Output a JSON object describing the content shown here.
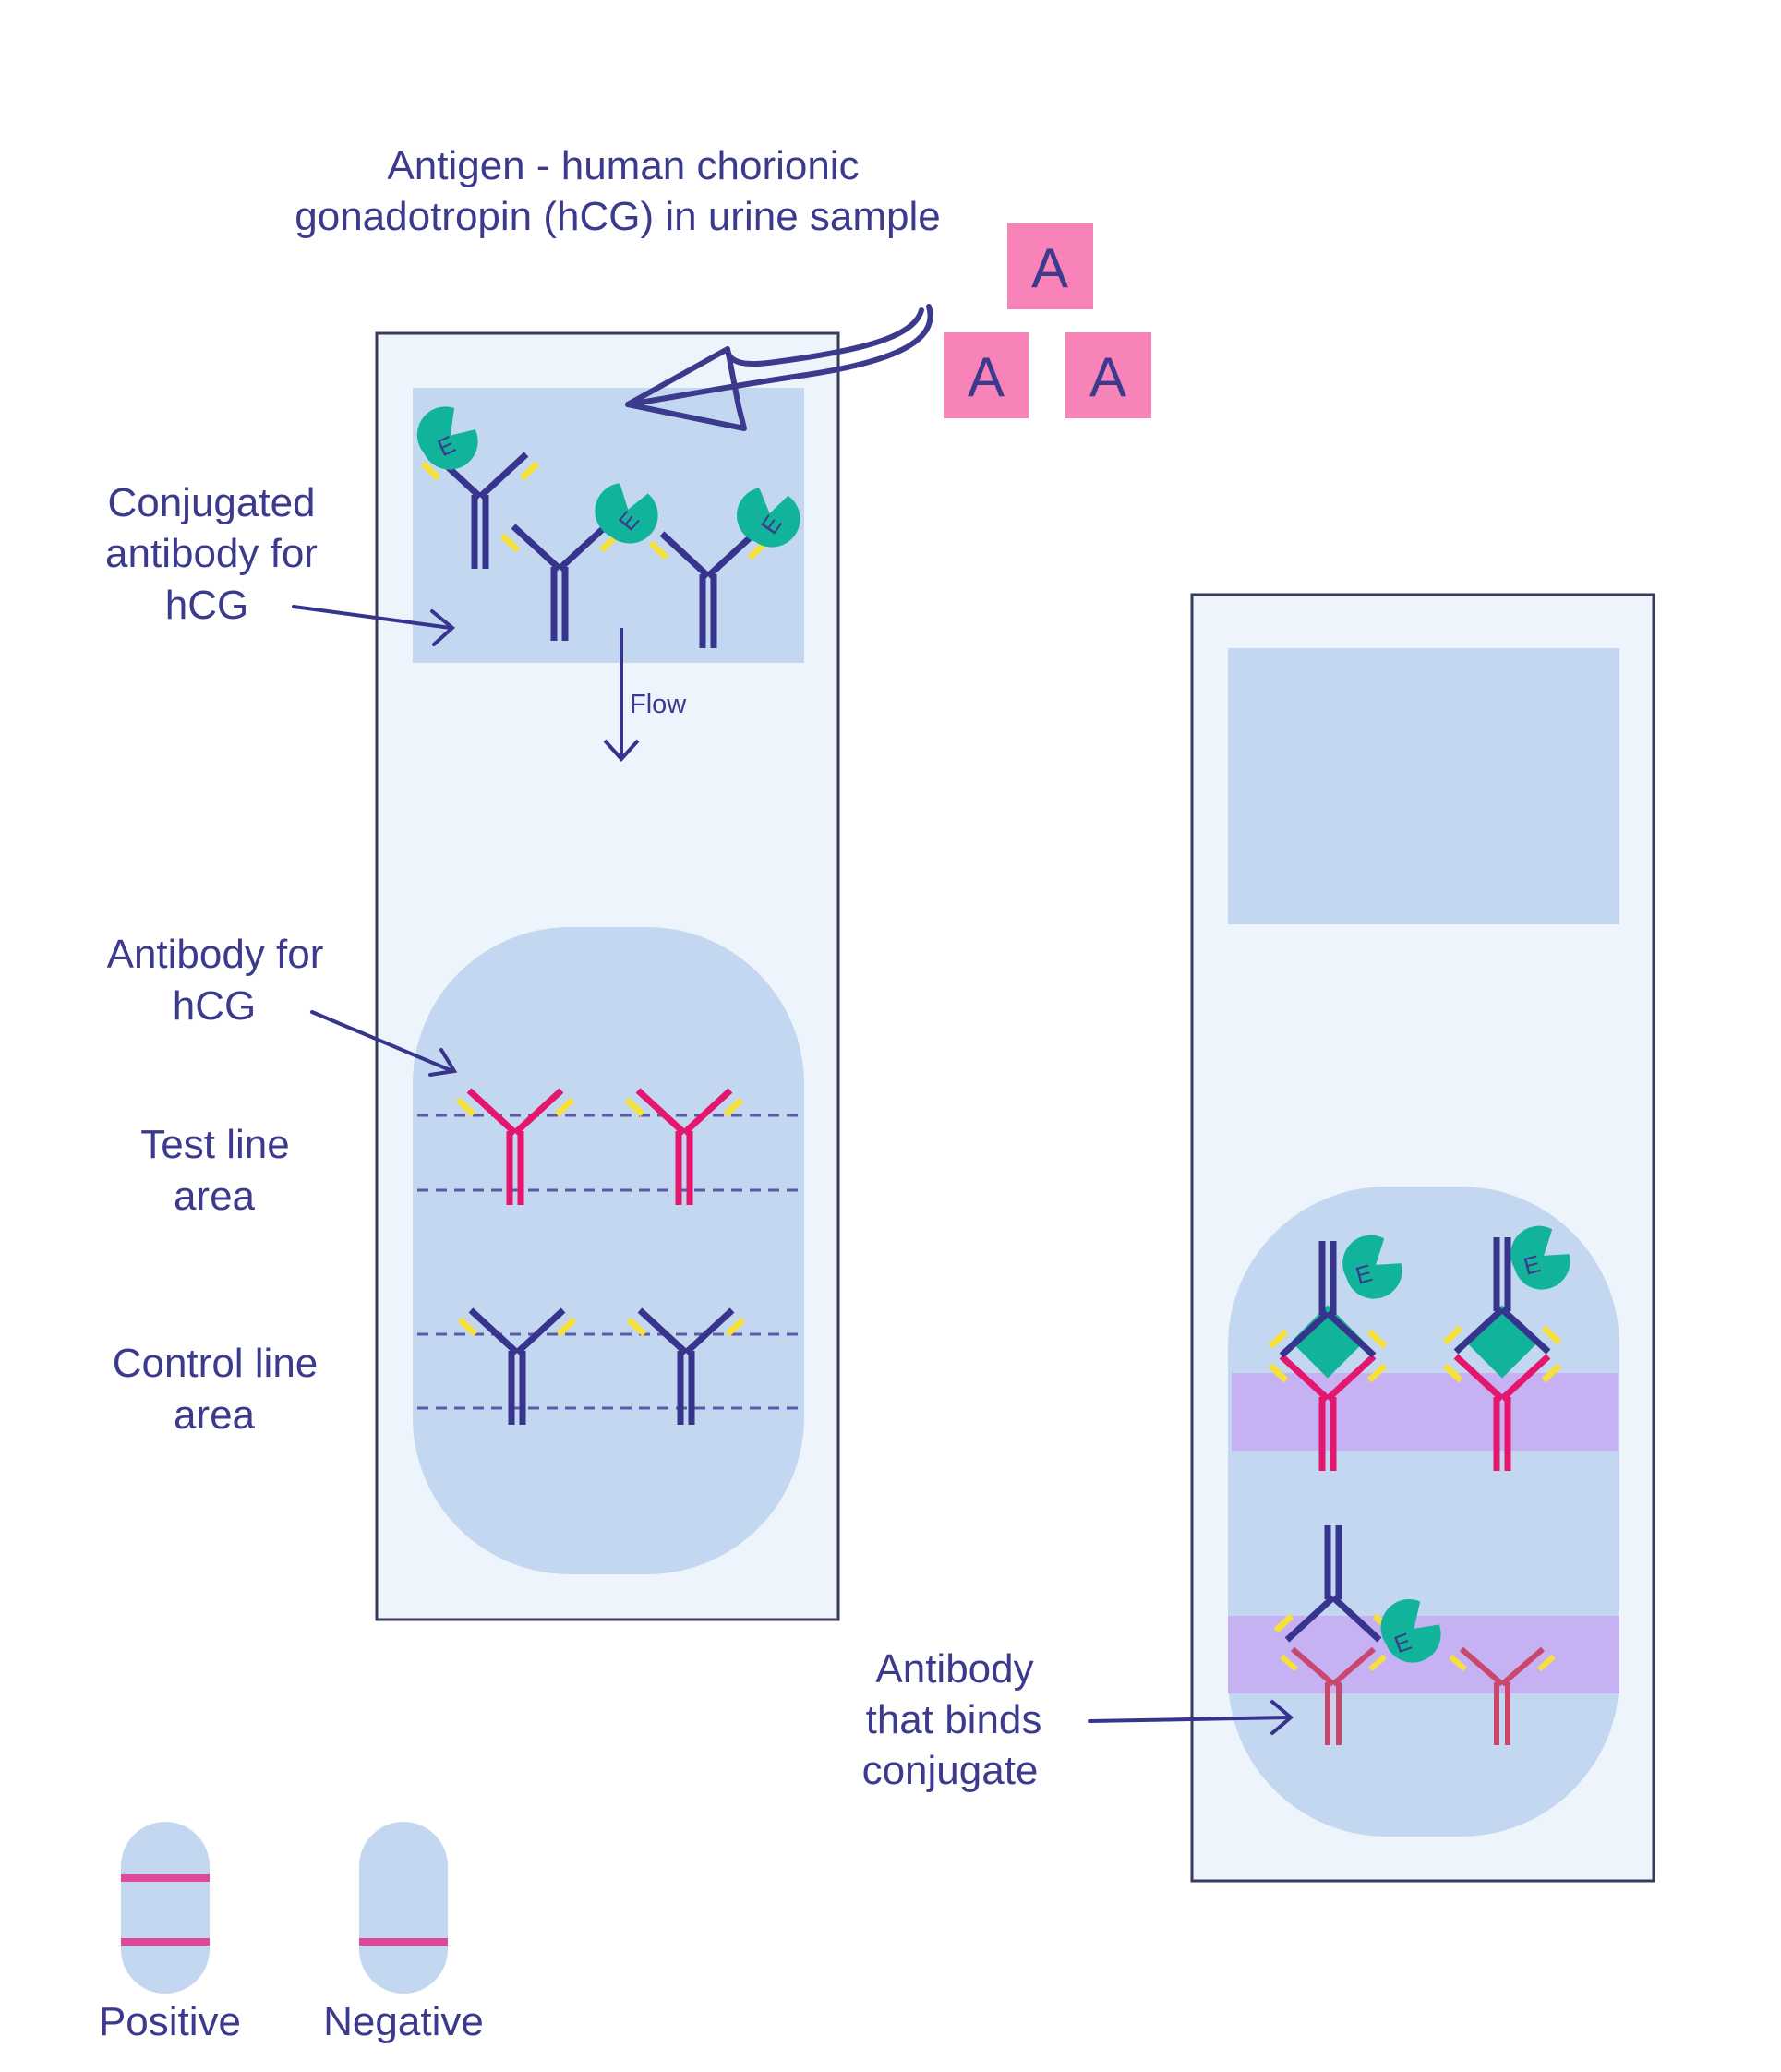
{
  "labels": {
    "antigen_line1": "Antigen - human chorionic",
    "antigen_line2": "gonadotropin (hCG) in urine sample",
    "conjugated_line1": "Conjugated",
    "conjugated_line2": "antibody for",
    "conjugated_line3": "hCG",
    "flow": "Flow",
    "antibody_line1": "Antibody for",
    "antibody_line2": "hCG",
    "test_line1": "Test line",
    "test_line2": "area",
    "control_line1": "Control line",
    "control_line2": "area",
    "binds_line1": "Antibody",
    "binds_line2": "that binds",
    "binds_line3": "conjugate",
    "positive": "Positive",
    "negative": "Negative"
  },
  "antigen_letter": "A",
  "enzyme_letter": "E",
  "colors": {
    "text": "#3b3a8c",
    "antibody_navy": "#36348c",
    "antibody_magenta": "#e4166e",
    "antibody_rose": "#c9476b",
    "tips_yellow": "#f6e03c",
    "enzyme_teal": "#12b39b",
    "antigen_pink": "#f783b9",
    "pad_blue": "#c3d7f1",
    "strip_bg": "#eef4fb",
    "line_purple": "#c6b2f3",
    "indicator_line": "#e1489a"
  }
}
